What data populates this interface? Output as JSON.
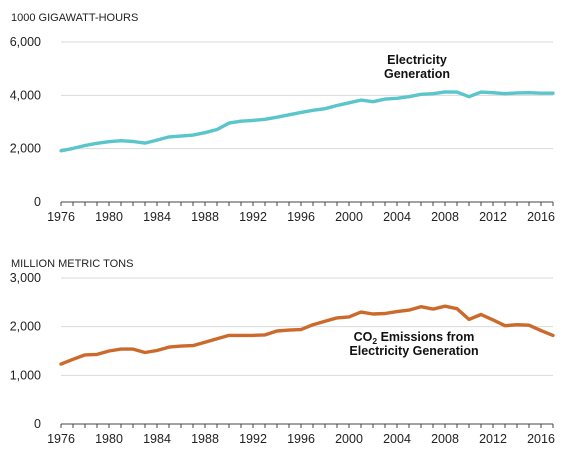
{
  "colors": {
    "electricity": "#5BC5CC",
    "co2": "#CC6A2B",
    "axis": "#444444"
  },
  "chart_data": [
    {
      "type": "line",
      "ylabel": "1000 GIGAWATT-HOURS",
      "ylim": [
        0,
        6000
      ],
      "yticks": [
        "0",
        "2,000",
        "4,000",
        "6,000"
      ],
      "xlim": [
        1976,
        2017
      ],
      "xticks": [
        "1976",
        "1980",
        "1984",
        "1988",
        "1992",
        "1996",
        "2000",
        "2004",
        "2008",
        "2012",
        "2016"
      ],
      "annotation_lines": [
        "Electricity",
        "Generation"
      ],
      "series": [
        {
          "name": "Electricity Generation",
          "x": [
            1976,
            1977,
            1978,
            1979,
            1980,
            1981,
            1982,
            1983,
            1984,
            1985,
            1986,
            1987,
            1988,
            1989,
            1990,
            1991,
            1992,
            1993,
            1994,
            1995,
            1996,
            1997,
            1998,
            1999,
            2000,
            2001,
            2002,
            2003,
            2004,
            2005,
            2006,
            2007,
            2008,
            2009,
            2010,
            2011,
            2012,
            2013,
            2014,
            2015,
            2016,
            2017
          ],
          "values": [
            1920,
            2010,
            2120,
            2200,
            2260,
            2300,
            2270,
            2210,
            2320,
            2440,
            2470,
            2510,
            2600,
            2720,
            2960,
            3030,
            3060,
            3100,
            3180,
            3270,
            3360,
            3440,
            3500,
            3620,
            3720,
            3820,
            3760,
            3860,
            3890,
            3950,
            4040,
            4060,
            4130,
            4120,
            3950,
            4120,
            4100,
            4060,
            4090,
            4100,
            4080,
            4080
          ]
        }
      ]
    },
    {
      "type": "line",
      "ylabel": "MILLION METRIC TONS",
      "ylim": [
        0,
        3000
      ],
      "yticks": [
        "0",
        "1,000",
        "2,000",
        "3,000"
      ],
      "xlim": [
        1976,
        2017
      ],
      "xticks": [
        "1976",
        "1980",
        "1984",
        "1988",
        "1992",
        "1996",
        "2000",
        "2004",
        "2008",
        "2012",
        "2016"
      ],
      "annotation": {
        "co": "CO",
        "sub": "2",
        "rest": " Emissions from",
        "line2": "Electricity Generation"
      },
      "series": [
        {
          "name": "CO2 Emissions from Electricity Generation",
          "x": [
            1976,
            1977,
            1978,
            1979,
            1980,
            1981,
            1982,
            1983,
            1984,
            1985,
            1986,
            1987,
            1988,
            1989,
            1990,
            1991,
            1992,
            1993,
            1994,
            1995,
            1996,
            1997,
            1998,
            1999,
            2000,
            2001,
            2002,
            2003,
            2004,
            2005,
            2006,
            2007,
            2008,
            2009,
            2010,
            2011,
            2012,
            2013,
            2014,
            2015,
            2016,
            2017
          ],
          "values": [
            1230,
            1330,
            1420,
            1430,
            1500,
            1540,
            1540,
            1470,
            1510,
            1580,
            1600,
            1610,
            1680,
            1750,
            1820,
            1820,
            1820,
            1830,
            1910,
            1930,
            1940,
            2040,
            2110,
            2180,
            2200,
            2300,
            2260,
            2270,
            2310,
            2340,
            2410,
            2360,
            2420,
            2370,
            2150,
            2250,
            2140,
            2020,
            2040,
            2030,
            1920,
            1820
          ]
        }
      ]
    }
  ]
}
